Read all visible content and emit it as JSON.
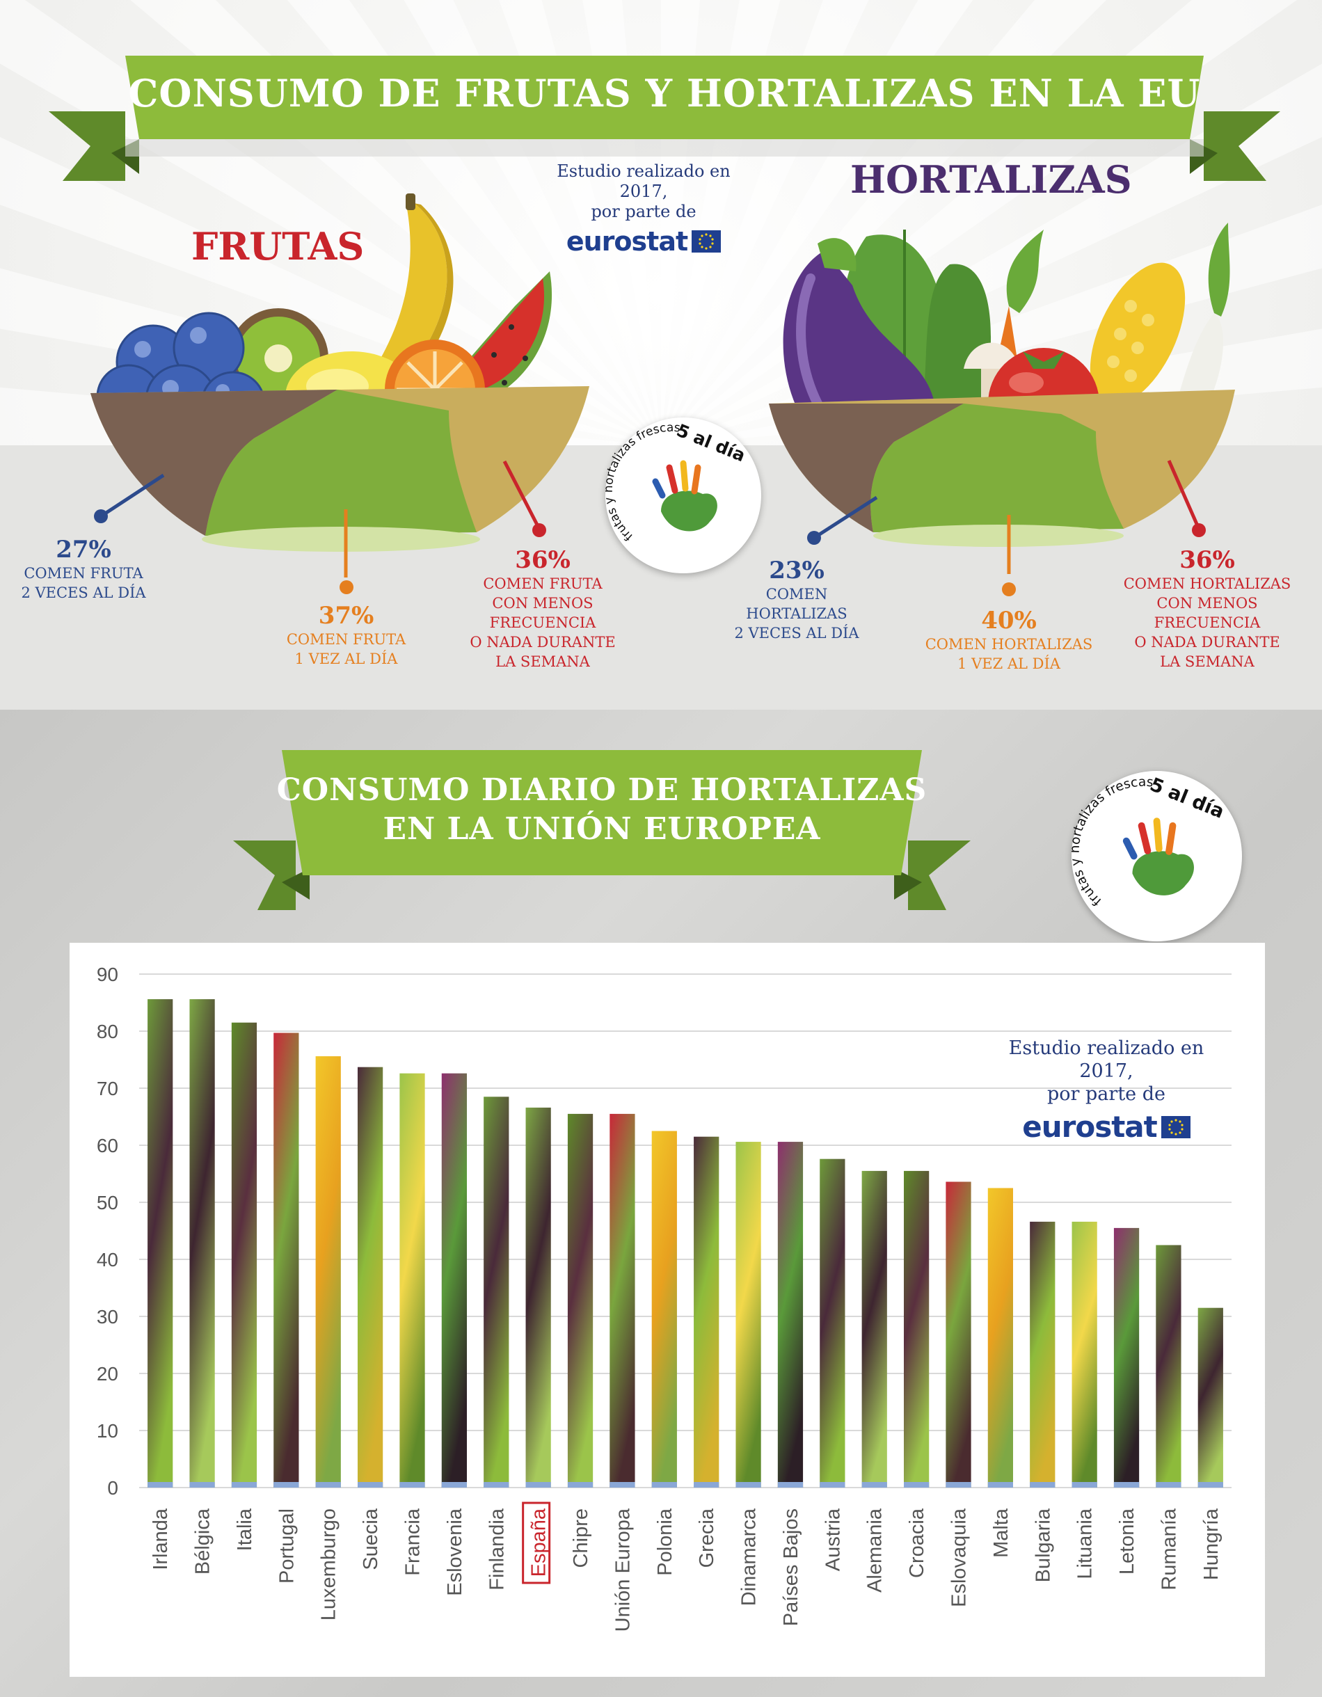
{
  "header": {
    "main_title": "CONSUMO DE FRUTAS Y HORTALIZAS EN LA EU",
    "study_line1": "Estudio realizado en 2017,",
    "study_line2": "por parte de",
    "eurostat": "eurostat"
  },
  "frutas": {
    "heading": "FRUTAS",
    "stats": [
      {
        "pct": "27%",
        "line1": "COMEN FRUTA",
        "line2": "2 VECES AL DÍA",
        "color": "#2c4a8c"
      },
      {
        "pct": "37%",
        "line1": "COMEN FRUTA",
        "line2": "1 VEZ AL DÍA",
        "color": "#e57f1f"
      },
      {
        "pct": "36%",
        "line1": "COMEN FRUTA",
        "line2": "CON MENOS FRECUENCIA",
        "line3": "O NADA DURANTE",
        "line4": "LA SEMANA",
        "color": "#c9252c"
      }
    ]
  },
  "hortalizas": {
    "heading": "HORTALIZAS",
    "stats": [
      {
        "pct": "23%",
        "line1": "COMEN HORTALIZAS",
        "line2": "2 VECES AL DÍA",
        "color": "#2c4a8c"
      },
      {
        "pct": "40%",
        "line1": "COMEN HORTALIZAS",
        "line2": "1 VEZ AL DÍA",
        "color": "#e57f1f"
      },
      {
        "pct": "36%",
        "line1": "COMEN HORTALIZAS",
        "line2": "CON MENOS FRECUENCIA",
        "line3": "O NADA DURANTE",
        "line4": "LA SEMANA",
        "color": "#c9252c"
      }
    ]
  },
  "badge": {
    "main_text": "5 al día",
    "arc_text": "frutas y hortalizas frescas"
  },
  "colors": {
    "ribbon_green": "#8dbb3b",
    "ribbon_dark": "#5f8a2a",
    "bowl_brown": "#7a6152",
    "bowl_green": "#7fae3c",
    "bowl_tan": "#c9ad5d",
    "highlight_red": "#c9252c"
  },
  "chart_data": {
    "type": "bar",
    "title": "CONSUMO DIARIO DE HORTALIZAS EN LA UNIÓN EUROPEA",
    "title_line1": "CONSUMO DIARIO DE HORTALIZAS",
    "title_line2": "EN LA UNIÓN EUROPEA",
    "note_line1": "Estudio realizado en 2017,",
    "note_line2": "por parte de",
    "note_logo": "eurostat",
    "categories": [
      "Irlanda",
      "Bélgica",
      "Italia",
      "Portugal",
      "Luxemburgo",
      "Suecia",
      "Francia",
      "Eslovenia",
      "Finlandia",
      "España",
      "Chipre",
      "Unión Europa",
      "Polonia",
      "Grecia",
      "Dinamarca",
      "Países Bajos",
      "Austria",
      "Alemania",
      "Croacia",
      "Eslovaquia",
      "Malta",
      "Bulgaria",
      "Lituania",
      "Letonia",
      "Rumanía",
      "Hungría"
    ],
    "values": [
      85.6,
      85.6,
      81.5,
      79.7,
      75.6,
      73.7,
      72.6,
      72.6,
      68.5,
      66.6,
      65.5,
      65.5,
      62.5,
      61.5,
      60.6,
      60.6,
      57.6,
      55.5,
      55.5,
      53.6,
      52.5,
      46.6,
      46.6,
      45.5,
      42.5,
      31.5
    ],
    "highlight": "España",
    "ylim": [
      0,
      90
    ],
    "yticks": [
      0,
      10,
      20,
      30,
      40,
      50,
      60,
      70,
      80,
      90
    ],
    "xlabel": "",
    "ylabel": "",
    "grid": true
  }
}
